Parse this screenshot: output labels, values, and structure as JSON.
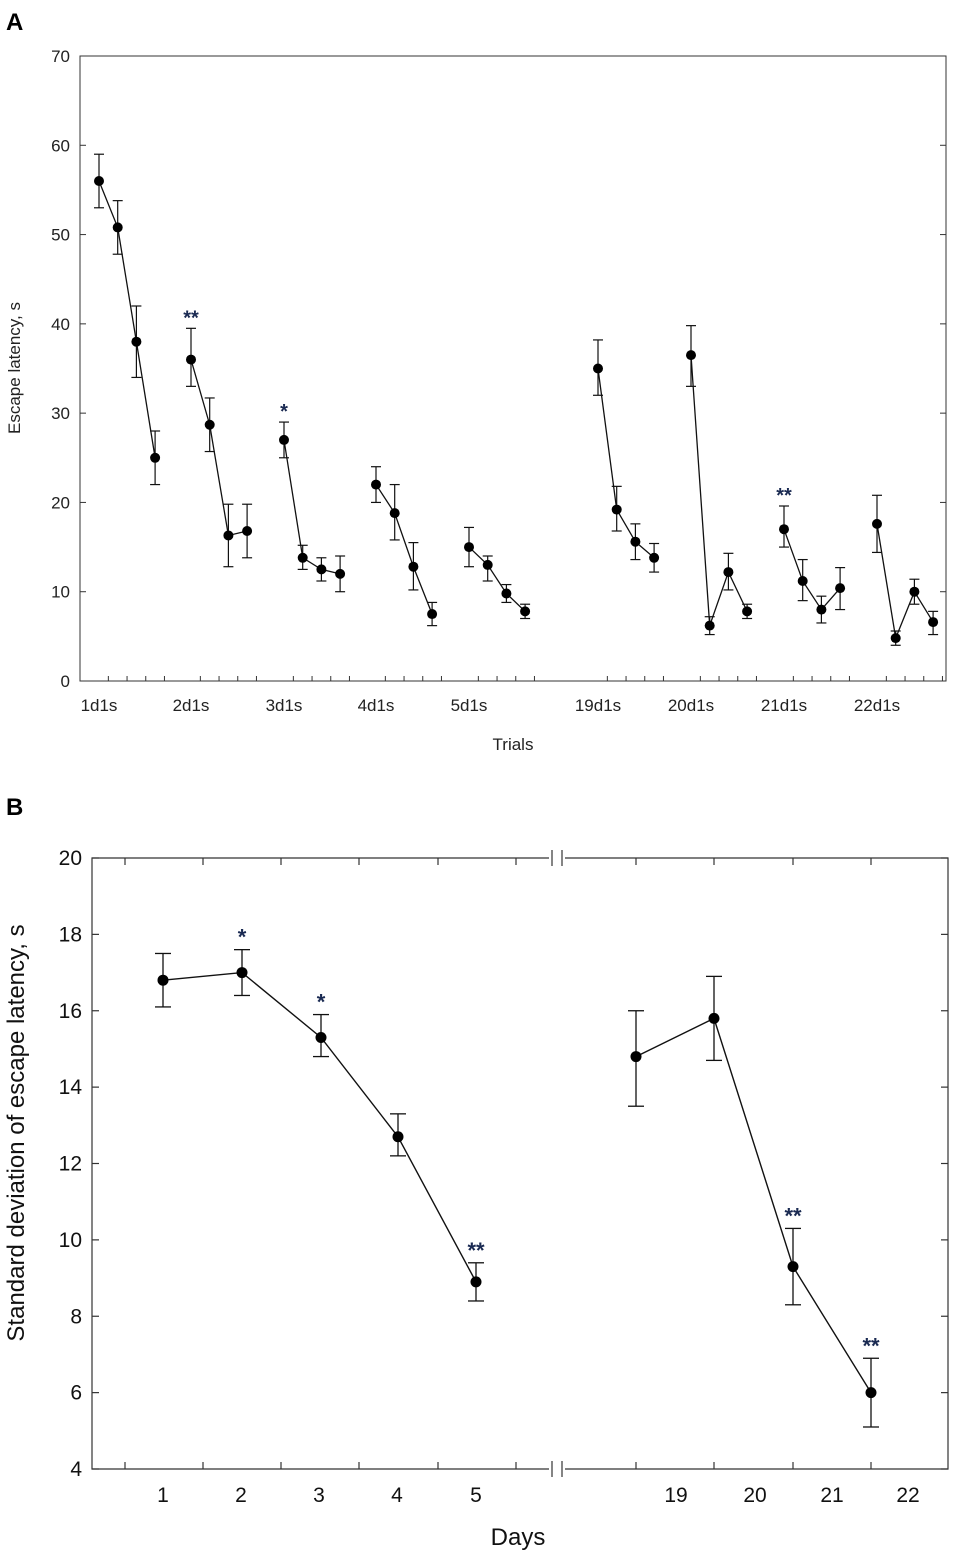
{
  "chart_data": [
    {
      "type": "line",
      "panel_label": "A",
      "xlabel": "Trials",
      "ylabel": "Escape latency, s",
      "ylim": [
        0,
        70
      ],
      "yticks": [
        "0",
        "10",
        "20",
        "30",
        "40",
        "50",
        "60",
        "70"
      ],
      "grid": false,
      "error_bars": true,
      "groups": [
        {
          "label": "1d1s",
          "values": [
            56,
            50.8,
            38,
            25
          ],
          "lower": [
            53,
            47.8,
            34,
            22
          ],
          "upper": [
            59,
            53.8,
            42,
            28
          ],
          "marks": [
            "",
            "",
            "",
            ""
          ]
        },
        {
          "label": "2d1s",
          "values": [
            36,
            28.7,
            16.3,
            16.8
          ],
          "lower": [
            33,
            25.7,
            12.8,
            13.8
          ],
          "upper": [
            39.5,
            31.7,
            19.8,
            19.8
          ],
          "marks": [
            "**",
            "",
            "",
            ""
          ]
        },
        {
          "label": "3d1s",
          "values": [
            27,
            13.8,
            12.5,
            12
          ],
          "lower": [
            25,
            12.5,
            11.2,
            10
          ],
          "upper": [
            29,
            15.2,
            13.8,
            14
          ],
          "marks": [
            "*",
            "",
            "",
            ""
          ]
        },
        {
          "label": "4d1s",
          "values": [
            22,
            18.8,
            12.8,
            7.5
          ],
          "lower": [
            20,
            15.8,
            10.2,
            6.2
          ],
          "upper": [
            24,
            22,
            15.5,
            8.8
          ],
          "marks": [
            "",
            "",
            "",
            ""
          ]
        },
        {
          "label": "5d1s",
          "values": [
            15,
            13,
            9.8,
            7.8
          ],
          "lower": [
            12.8,
            11.2,
            8.8,
            7
          ],
          "upper": [
            17.2,
            14,
            10.8,
            8.6
          ],
          "marks": [
            "",
            "",
            "",
            ""
          ]
        },
        {
          "label": "19d1s",
          "values": [
            35,
            19.2,
            15.6,
            13.8
          ],
          "lower": [
            32,
            16.8,
            13.6,
            12.2
          ],
          "upper": [
            38.2,
            21.8,
            17.6,
            15.4
          ],
          "marks": [
            "",
            "",
            "",
            ""
          ]
        },
        {
          "label": "20d1s",
          "values": [
            36.5,
            6.2,
            12.2,
            7.8
          ],
          "lower": [
            33,
            5.2,
            10.2,
            7
          ],
          "upper": [
            39.8,
            7.2,
            14.3,
            8.6
          ],
          "marks": [
            "",
            "",
            "",
            ""
          ]
        },
        {
          "label": "21d1s",
          "values": [
            17,
            11.2,
            8,
            10.4
          ],
          "lower": [
            15,
            9,
            6.5,
            8
          ],
          "upper": [
            19.6,
            13.6,
            9.5,
            12.7
          ],
          "marks": [
            "**",
            "",
            "",
            ""
          ]
        },
        {
          "label": "22d1s",
          "values": [
            17.6,
            4.8,
            10,
            6.6
          ],
          "lower": [
            14.4,
            4,
            8.6,
            5.2
          ],
          "upper": [
            20.8,
            5.6,
            11.4,
            7.8
          ],
          "marks": [
            "",
            "",
            "",
            ""
          ]
        }
      ]
    },
    {
      "type": "line",
      "panel_label": "B",
      "xlabel": "Days",
      "ylabel": "Standard  deviation of escape latency, s",
      "ylim": [
        4,
        20
      ],
      "yticks": [
        "4",
        "6",
        "8",
        "10",
        "12",
        "14",
        "16",
        "18",
        "20"
      ],
      "grid": false,
      "error_bars": true,
      "broken_x_axis": true,
      "segments": [
        {
          "x_tick_labels": [
            "1",
            "2",
            "3",
            "4",
            "5"
          ],
          "x": [
            "1",
            "2",
            "3",
            "4",
            "5"
          ],
          "values": [
            16.8,
            17,
            15.3,
            12.7,
            8.9
          ],
          "lower": [
            16.1,
            16.4,
            14.8,
            12.2,
            8.4
          ],
          "upper": [
            17.5,
            17.6,
            15.9,
            13.3,
            9.4
          ],
          "marks": [
            "",
            "*",
            "*",
            "",
            "**"
          ]
        },
        {
          "x_tick_labels": [
            "19",
            "20",
            "21",
            "22"
          ],
          "x": [
            "19",
            "20",
            "21",
            "22"
          ],
          "values": [
            14.8,
            15.8,
            9.3,
            6
          ],
          "lower": [
            13.5,
            14.7,
            8.3,
            5.1
          ],
          "upper": [
            16,
            16.9,
            10.3,
            6.9
          ],
          "marks": [
            "",
            "",
            "**",
            "**"
          ]
        }
      ]
    }
  ]
}
